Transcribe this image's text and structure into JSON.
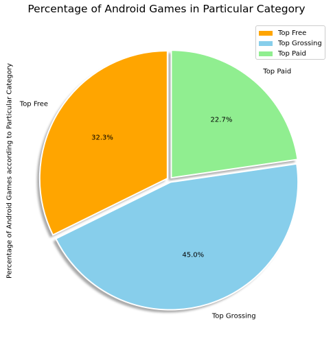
{
  "chart_data": {
    "type": "pie",
    "title": "Percentage of Android Games in Particular Category",
    "ylabel": "Percentage of Android Games according to Particular Category",
    "xlabel": "",
    "categories": [
      "Top Free",
      "Top Grossing",
      "Top Paid"
    ],
    "values": [
      32.3,
      45.0,
      22.7
    ],
    "value_labels": [
      "32.3%",
      "45.0%",
      "22.7%"
    ],
    "colors": [
      "#FFA500",
      "#87CEEB",
      "#90EE90"
    ],
    "start_angle_deg": 90,
    "direction": "counterclockwise",
    "explode": [
      0.02,
      0.02,
      0.02
    ],
    "shadow": true,
    "legend": {
      "position": "top-right",
      "entries": [
        "Top Free",
        "Top Grossing",
        "Top Paid"
      ]
    }
  }
}
